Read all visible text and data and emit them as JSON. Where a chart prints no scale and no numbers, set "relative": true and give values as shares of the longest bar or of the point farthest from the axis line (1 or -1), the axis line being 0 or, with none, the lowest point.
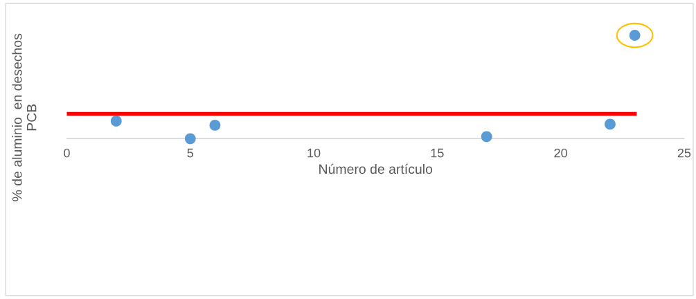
{
  "chart_data": {
    "type": "scatter",
    "xlabel": "Número de artículo",
    "ylabel": "% de aluminio  en desechos\nPCB",
    "relative": true,
    "xlim": [
      0,
      25
    ],
    "xticks": [
      0,
      5,
      10,
      15,
      20,
      25
    ],
    "grid": false,
    "legend": false,
    "series": [
      {
        "color": "#5b9bd5",
        "x": [
          2,
          5,
          6,
          17,
          22,
          23
        ],
        "values": [
          0.17,
          0,
          0.13,
          0.02,
          0.14,
          1
        ],
        "marker": "circle"
      },
      {
        "type": "line",
        "color": "#ff0000",
        "x": [
          0,
          23
        ],
        "values": [
          0.24,
          0.24
        ],
        "line_style": "solid"
      }
    ]
  }
}
